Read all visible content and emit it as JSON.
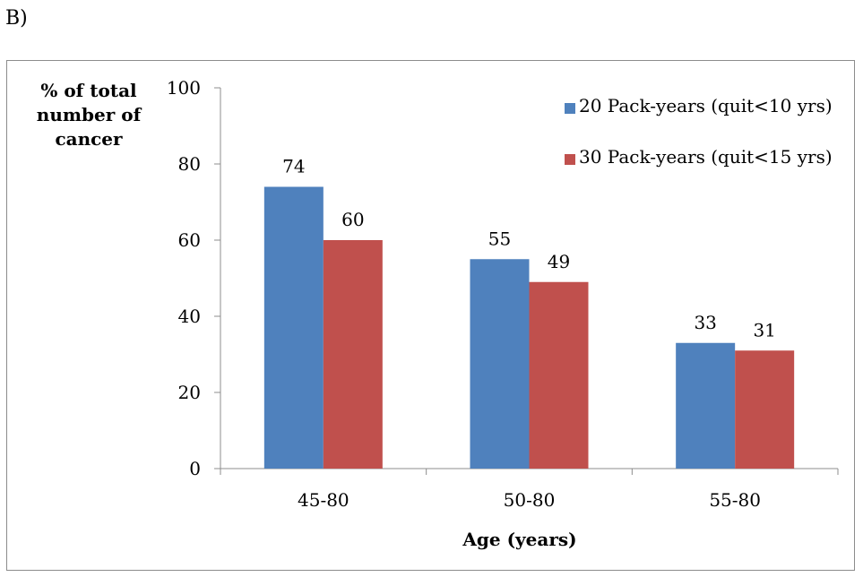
{
  "panel_label": "B)",
  "chart_data": {
    "type": "bar",
    "categories": [
      "45-80",
      "50-80",
      "55-80"
    ],
    "series": [
      {
        "name": "20 Pack-years (quit<10 yrs)",
        "values": [
          74,
          55,
          33
        ],
        "color": "#4f81bd"
      },
      {
        "name": "30 Pack-years (quit<15 yrs)",
        "values": [
          60,
          49,
          31
        ],
        "color": "#c0504d"
      }
    ],
    "title": "",
    "xlabel": "Age (years)",
    "ylabel": "% of  total number of cancer",
    "ylim": [
      0,
      100
    ],
    "yticks": [
      "0",
      "20",
      "40",
      "60",
      "80",
      "100"
    ],
    "data_labels": true,
    "grid": false,
    "legend_position": "top-right"
  }
}
